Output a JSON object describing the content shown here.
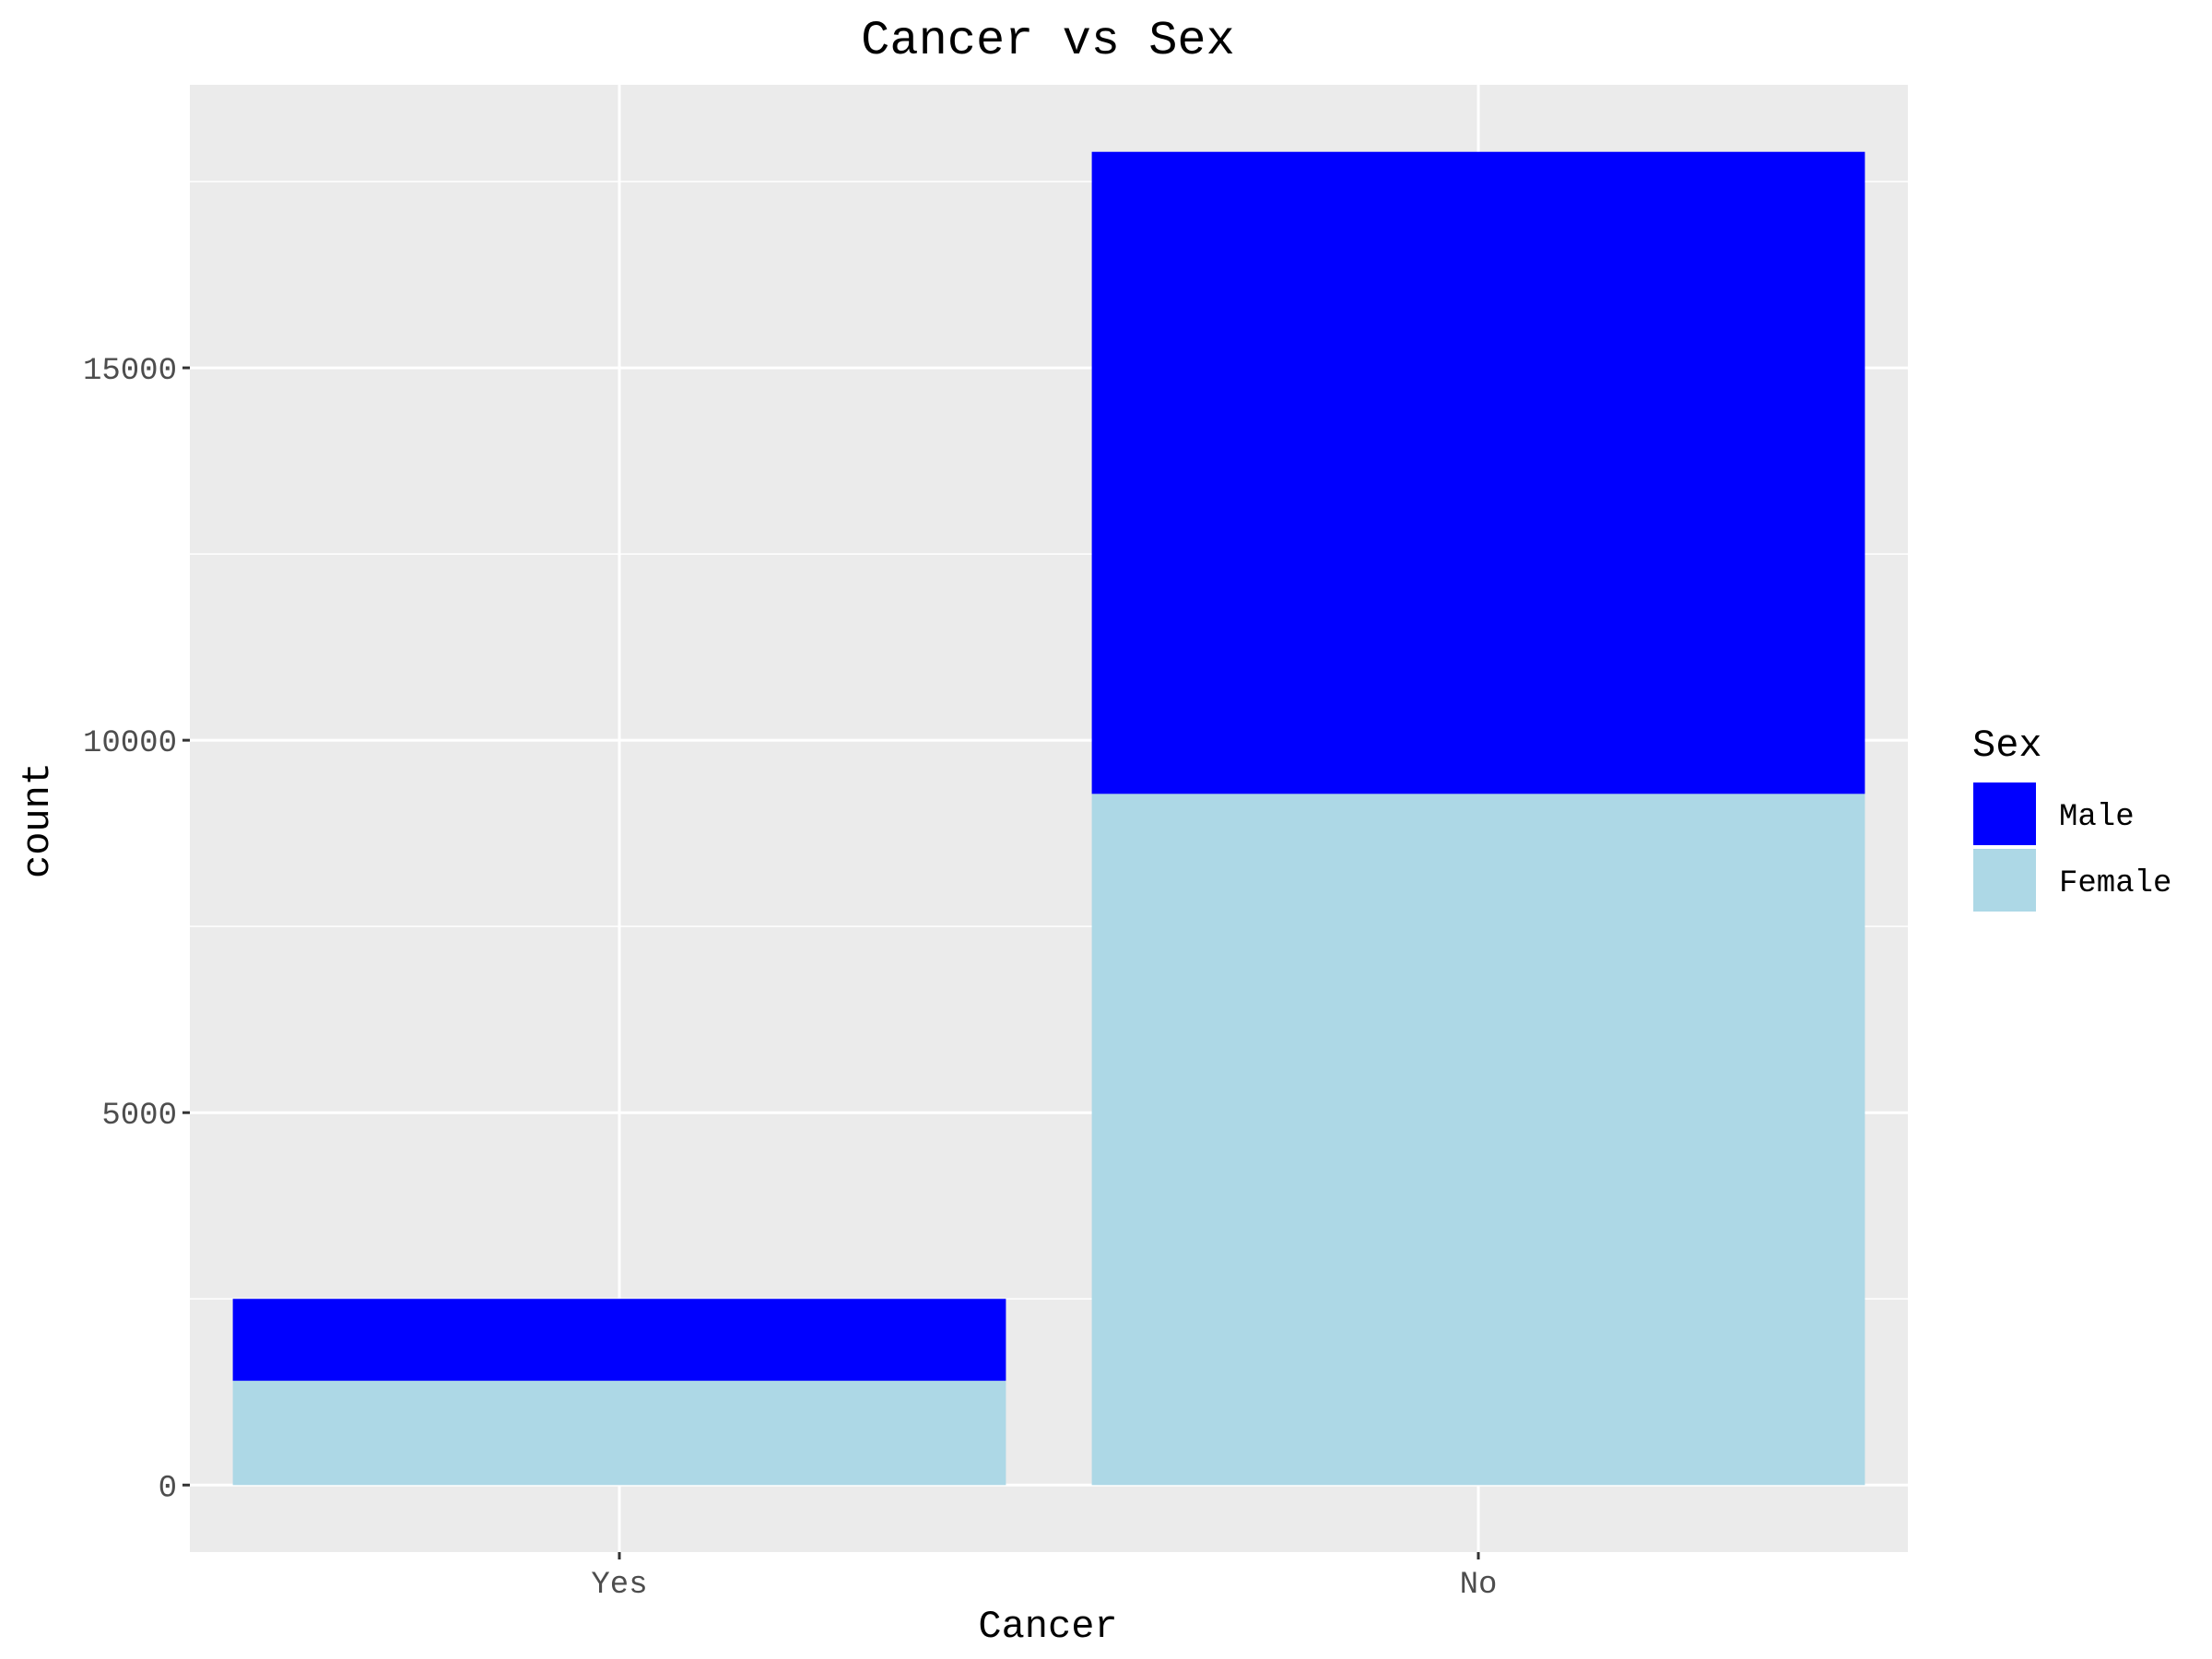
{
  "chart_data": {
    "type": "bar",
    "stacked": true,
    "title": "Cancer vs Sex",
    "xlabel": "Cancer",
    "ylabel": "count",
    "categories": [
      "Yes",
      "No"
    ],
    "series": [
      {
        "name": "Female",
        "values": [
          1400,
          9280
        ],
        "color": "#add8e6"
      },
      {
        "name": "Male",
        "values": [
          1100,
          8620
        ],
        "color": "#0000ff"
      }
    ],
    "yticks": [
      0,
      5000,
      10000,
      15000
    ],
    "ylim": [
      -900,
      18800
    ],
    "grid": true,
    "background": "#ebebeb",
    "legend": {
      "title": "Sex",
      "placement": "right",
      "entries": [
        {
          "label": "Male",
          "color": "#0000ff"
        },
        {
          "label": "Female",
          "color": "#add8e6"
        }
      ]
    }
  }
}
